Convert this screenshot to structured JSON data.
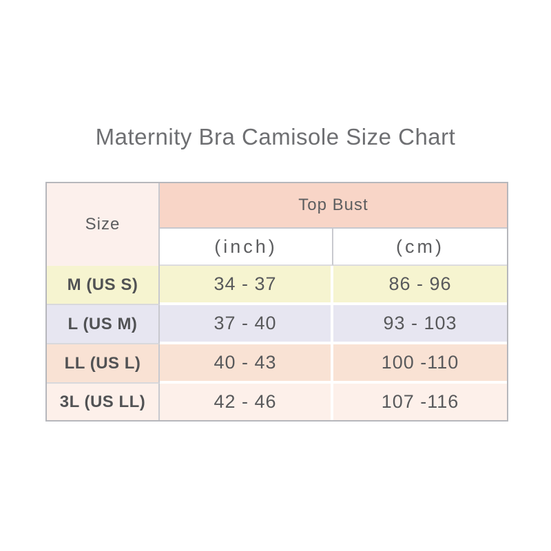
{
  "page": {
    "title": "Maternity Bra Camisole Size Chart"
  },
  "colors": {
    "page_bg": "#ffffff",
    "group_header_bg": "#f8d5c7",
    "size_header_bg": "#fcf0ec",
    "row_m_bg": "#f6f4d0",
    "row_l_bg": "#e7e6f1",
    "row_ll_bg": "#f9e2d4",
    "row_3l_bg": "#fdf0ea",
    "title_text": "#6e6f72",
    "cell_text": "#58595b",
    "table_border": "#b6b7bc"
  },
  "table": {
    "header": {
      "size_label": "Size",
      "group_label": "Top Bust",
      "units": [
        "(inch)",
        "(cm)"
      ]
    },
    "rows": [
      {
        "size": "M (US S)",
        "inch": "34 - 37",
        "cm": "86 - 96",
        "bg": "#f6f4d0"
      },
      {
        "size": "L (US M)",
        "inch": "37 - 40",
        "cm": "93 - 103",
        "bg": "#e7e6f1"
      },
      {
        "size": "LL (US L)",
        "inch": "40 - 43",
        "cm": "100 -110",
        "bg": "#f9e2d4"
      },
      {
        "size": "3L (US LL)",
        "inch": "42 - 46",
        "cm": "107 -116",
        "bg": "#fdf0ea"
      }
    ]
  },
  "chart_data": {
    "type": "table",
    "title": "Maternity Bra Camisole Size Chart",
    "columns": [
      "Size",
      "Top Bust (inch)",
      "Top Bust (cm)"
    ],
    "rows": [
      [
        "M (US S)",
        "34 - 37",
        "86 - 96"
      ],
      [
        "L (US M)",
        "37 - 40",
        "93 - 103"
      ],
      [
        "LL (US L)",
        "40 - 43",
        "100 - 110"
      ],
      [
        "3L (US LL)",
        "42 - 46",
        "107 - 116"
      ]
    ]
  }
}
